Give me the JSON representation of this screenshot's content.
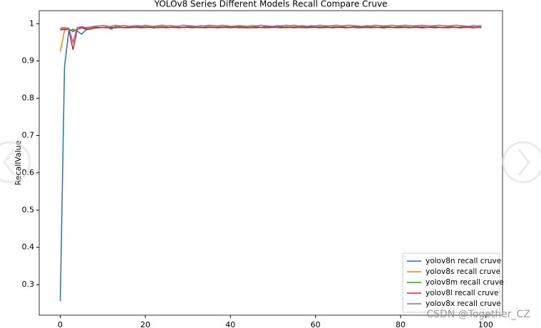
{
  "chart_data": {
    "type": "line",
    "title": "YOLOv8 Series Different Models Recall Compare Cruve",
    "y_label": "RecallValue",
    "annotation": "CSDN @Together_CZ",
    "legend": "lower right",
    "grid": false,
    "xlim": [
      -4.95,
      103.95
    ],
    "ylim": [
      0.218,
      1.035
    ],
    "xticks": [
      0,
      20,
      40,
      60,
      80,
      100
    ],
    "yticks": [
      0.3,
      0.4,
      0.5,
      0.6,
      0.7,
      0.8,
      0.9,
      1.0
    ],
    "x": [
      0,
      1,
      2,
      3,
      4,
      5,
      6,
      7,
      8,
      9,
      10,
      11,
      12,
      13,
      14,
      15,
      16,
      17,
      18,
      19,
      20,
      21,
      22,
      23,
      24,
      25,
      26,
      27,
      28,
      29,
      30,
      31,
      32,
      33,
      34,
      35,
      36,
      37,
      38,
      39,
      40,
      41,
      42,
      43,
      44,
      45,
      46,
      47,
      48,
      49,
      50,
      51,
      52,
      53,
      54,
      55,
      56,
      57,
      58,
      59,
      60,
      61,
      62,
      63,
      64,
      65,
      66,
      67,
      68,
      69,
      70,
      71,
      72,
      73,
      74,
      75,
      76,
      77,
      78,
      79,
      80,
      81,
      82,
      83,
      84,
      85,
      86,
      87,
      88,
      89,
      90,
      91,
      92,
      93,
      94,
      95,
      96,
      97,
      98,
      99
    ],
    "series": [
      {
        "name": "yolov8n recall cruve",
        "color": "#1f77b4",
        "values": [
          0.255,
          0.885,
          0.98,
          0.985,
          0.98,
          0.972,
          0.983,
          0.987,
          0.989,
          0.99,
          0.99,
          0.99,
          0.988,
          0.992,
          0.991,
          0.99,
          0.991,
          0.99,
          0.992,
          0.991,
          0.99,
          0.991,
          0.989,
          0.991,
          0.992,
          0.99,
          0.991,
          0.992,
          0.99,
          0.991,
          0.992,
          0.991,
          0.99,
          0.991,
          0.99,
          0.992,
          0.991,
          0.99,
          0.991,
          0.992,
          0.991,
          0.99,
          0.992,
          0.991,
          0.99,
          0.989,
          0.991,
          0.99,
          0.992,
          0.991,
          0.99,
          0.991,
          0.992,
          0.99,
          0.991,
          0.992,
          0.991,
          0.99,
          0.991,
          0.992,
          0.991,
          0.99,
          0.992,
          0.991,
          0.99,
          0.991,
          0.992,
          0.991,
          0.99,
          0.991,
          0.992,
          0.991,
          0.99,
          0.991,
          0.992,
          0.99,
          0.991,
          0.992,
          0.991,
          0.99,
          0.991,
          0.992,
          0.991,
          0.99,
          0.991,
          0.992,
          0.991,
          0.99,
          0.992,
          0.991,
          0.99,
          0.991,
          0.992,
          0.991,
          0.99,
          0.991,
          0.992,
          0.991,
          0.99,
          0.991
        ]
      },
      {
        "name": "yolov8s recall cruve",
        "color": "#ff7f0e",
        "values": [
          0.925,
          0.982,
          0.986,
          0.978,
          0.985,
          0.988,
          0.986,
          0.987,
          0.988,
          0.989,
          0.99,
          0.989,
          0.99,
          0.991,
          0.99,
          0.989,
          0.99,
          0.991,
          0.99,
          0.989,
          0.99,
          0.99,
          0.991,
          0.989,
          0.99,
          0.99,
          0.991,
          0.99,
          0.989,
          0.99,
          0.991,
          0.99,
          0.99,
          0.989,
          0.99,
          0.991,
          0.99,
          0.989,
          0.99,
          0.99,
          0.991,
          0.99,
          0.989,
          0.99,
          0.988,
          0.99,
          0.991,
          0.99,
          0.989,
          0.99,
          0.99,
          0.991,
          0.99,
          0.989,
          0.99,
          0.991,
          0.99,
          0.989,
          0.99,
          0.99,
          0.991,
          0.99,
          0.989,
          0.99,
          0.991,
          0.99,
          0.99,
          0.989,
          0.99,
          0.991,
          0.99,
          0.989,
          0.99,
          0.99,
          0.991,
          0.99,
          0.988,
          0.99,
          0.991,
          0.99,
          0.989,
          0.99,
          0.99,
          0.991,
          0.99,
          0.989,
          0.99,
          0.991,
          0.99,
          0.99,
          0.989,
          0.99,
          0.991,
          0.99,
          0.989,
          0.99,
          0.99,
          0.991,
          0.99,
          0.99
        ]
      },
      {
        "name": "yolov8m recall cruve",
        "color": "#2ca02c",
        "values": [
          0.985,
          0.986,
          0.985,
          0.98,
          0.985,
          0.99,
          0.988,
          0.99,
          0.991,
          0.99,
          0.99,
          0.991,
          0.985,
          0.992,
          0.991,
          0.99,
          0.991,
          0.992,
          0.99,
          0.991,
          0.992,
          0.991,
          0.99,
          0.991,
          0.992,
          0.991,
          0.99,
          0.992,
          0.991,
          0.99,
          0.991,
          0.992,
          0.991,
          0.99,
          0.991,
          0.992,
          0.99,
          0.991,
          0.992,
          0.991,
          0.99,
          0.991,
          0.992,
          0.991,
          0.99,
          0.991,
          0.992,
          0.991,
          0.99,
          0.991,
          0.992,
          0.991,
          0.99,
          0.992,
          0.991,
          0.99,
          0.991,
          0.992,
          0.991,
          0.99,
          0.991,
          0.992,
          0.991,
          0.99,
          0.991,
          0.992,
          0.991,
          0.99,
          0.991,
          0.992,
          0.991,
          0.99,
          0.992,
          0.991,
          0.99,
          0.991,
          0.992,
          0.991,
          0.99,
          0.991,
          0.992,
          0.991,
          0.99,
          0.991,
          0.992,
          0.991,
          0.99,
          0.991,
          0.992,
          0.991,
          0.99,
          0.992,
          0.991,
          0.99,
          0.991,
          0.992,
          0.991,
          0.99,
          0.991,
          0.991
        ]
      },
      {
        "name": "yolov8l recall cruve",
        "color": "#d62728",
        "values": [
          0.983,
          0.985,
          0.985,
          0.93,
          0.985,
          0.99,
          0.985,
          0.985,
          0.988,
          0.989,
          0.99,
          0.989,
          0.99,
          0.989,
          0.99,
          0.99,
          0.989,
          0.99,
          0.99,
          0.989,
          0.99,
          0.99,
          0.989,
          0.99,
          0.99,
          0.989,
          0.99,
          0.99,
          0.989,
          0.99,
          0.99,
          0.989,
          0.99,
          0.99,
          0.989,
          0.99,
          0.99,
          0.989,
          0.99,
          0.99,
          0.989,
          0.99,
          0.99,
          0.989,
          0.99,
          0.99,
          0.989,
          0.99,
          0.99,
          0.989,
          0.99,
          0.99,
          0.989,
          0.99,
          0.99,
          0.989,
          0.99,
          0.99,
          0.989,
          0.99,
          0.99,
          0.989,
          0.99,
          0.99,
          0.989,
          0.99,
          0.99,
          0.989,
          0.99,
          0.99,
          0.989,
          0.99,
          0.99,
          0.989,
          0.99,
          0.99,
          0.989,
          0.99,
          0.99,
          0.989,
          0.99,
          0.99,
          0.989,
          0.99,
          0.99,
          0.989,
          0.99,
          0.99,
          0.989,
          0.99,
          0.99,
          0.989,
          0.99,
          0.99,
          0.989,
          0.99,
          0.99,
          0.989,
          0.99,
          0.99
        ]
      },
      {
        "name": "yolov8x recall cruve",
        "color": "#9467bd",
        "values": [
          0.988,
          0.99,
          0.988,
          0.95,
          0.99,
          0.992,
          0.99,
          0.991,
          0.993,
          0.994,
          0.995,
          0.994,
          0.993,
          0.996,
          0.994,
          0.995,
          0.993,
          0.994,
          0.995,
          0.994,
          0.996,
          0.994,
          0.993,
          0.995,
          0.996,
          0.994,
          0.995,
          0.993,
          0.994,
          0.996,
          0.995,
          0.994,
          0.993,
          0.995,
          0.994,
          0.996,
          0.995,
          0.994,
          0.996,
          0.995,
          0.993,
          0.994,
          0.995,
          0.994,
          0.993,
          0.995,
          0.994,
          0.996,
          0.995,
          0.994,
          0.993,
          0.995,
          0.994,
          0.996,
          0.995,
          0.996,
          0.994,
          0.995,
          0.993,
          0.995,
          0.994,
          0.996,
          0.995,
          0.994,
          0.995,
          0.996,
          0.994,
          0.995,
          0.996,
          0.995,
          0.994,
          0.993,
          0.995,
          0.994,
          0.996,
          0.995,
          0.994,
          0.995,
          0.996,
          0.994,
          0.995,
          0.996,
          0.995,
          0.994,
          0.995,
          0.996,
          0.995,
          0.994,
          0.995,
          0.996,
          0.995,
          0.994,
          0.995,
          0.996,
          0.995,
          0.994,
          0.993,
          0.995,
          0.994,
          0.995
        ]
      }
    ]
  }
}
